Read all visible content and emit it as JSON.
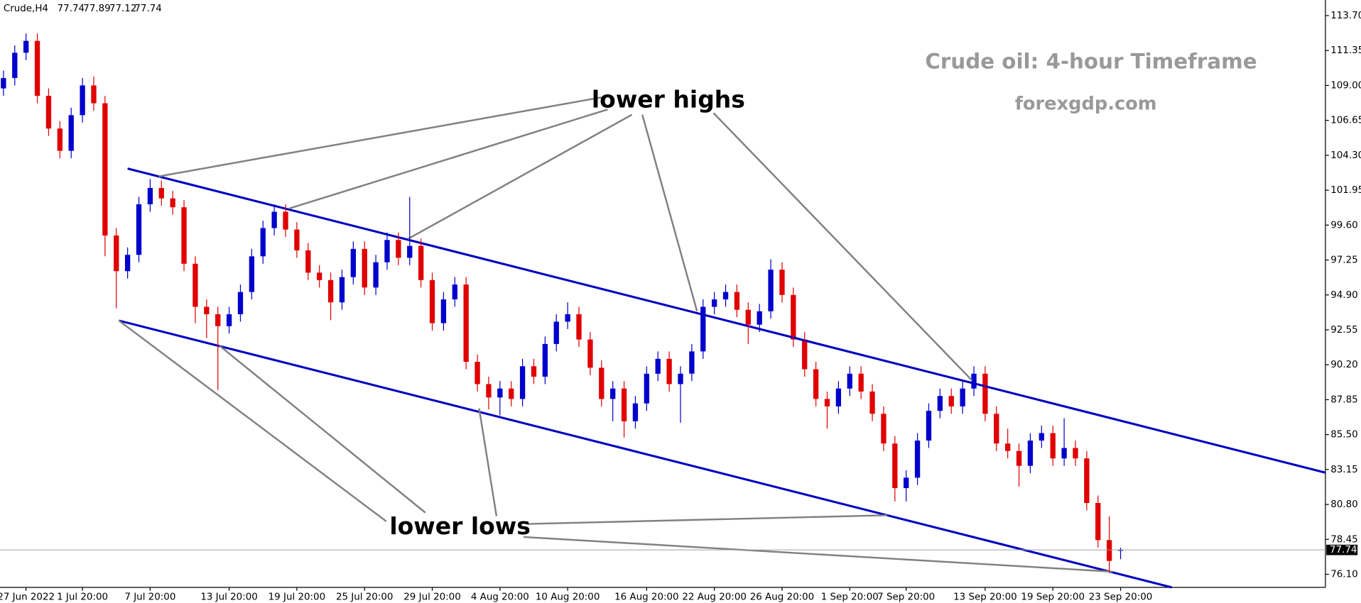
{
  "chart_data": {
    "type": "candlestick",
    "symbol": "Crude,H4",
    "title": "Crude oil: 4-hour Timeframe",
    "subtitle": "forexgdp.com",
    "annotations": [
      "lower highs",
      "lower lows"
    ],
    "up_color": "#0000cc",
    "down_color": "#e00000",
    "categories": [
      null,
      null,
      "27 Jun 2022",
      null,
      null,
      null,
      null,
      "1 Jul 20:00",
      null,
      null,
      null,
      null,
      null,
      "7 Jul 20:00",
      null,
      null,
      null,
      null,
      null,
      null,
      "13 Jul 20:00",
      null,
      null,
      null,
      null,
      null,
      "19 Jul 20:00",
      null,
      null,
      null,
      null,
      null,
      "25 Jul 20:00",
      null,
      null,
      null,
      null,
      null,
      "29 Jul 20:00",
      null,
      null,
      null,
      null,
      null,
      "4 Aug 20:00",
      null,
      null,
      null,
      null,
      null,
      "10 Aug 20:00",
      null,
      null,
      null,
      null,
      null,
      null,
      "16 Aug 20:00",
      null,
      null,
      null,
      null,
      null,
      "22 Aug 20:00",
      null,
      null,
      null,
      null,
      null,
      "26 Aug 20:00",
      null,
      null,
      null,
      null,
      null,
      "1 Sep 20:00",
      null,
      null,
      null,
      null,
      "7 Sep 20:00",
      null,
      null,
      null,
      null,
      null,
      null,
      "13 Sep 20:00",
      null,
      null,
      null,
      null,
      null,
      "19 Sep 20:00",
      null,
      null,
      null,
      null,
      null,
      "23 Sep 20:00"
    ],
    "open": [
      108.8,
      109.5,
      111.2,
      112.0,
      108.3,
      106.1,
      104.6,
      107.0,
      109.0,
      107.8,
      98.9,
      96.5,
      97.6,
      101.0,
      102.1,
      101.4,
      100.8,
      97.0,
      94.1,
      93.6,
      92.8,
      93.6,
      95.1,
      97.5,
      99.4,
      100.5,
      99.3,
      97.9,
      96.4,
      95.9,
      94.4,
      96.1,
      98.0,
      95.4,
      97.1,
      98.6,
      97.4,
      98.2,
      95.9,
      93.0,
      94.6,
      95.6,
      90.4,
      88.9,
      88.0,
      88.6,
      87.9,
      90.1,
      89.4,
      91.6,
      93.1,
      93.6,
      91.9,
      90.0,
      87.9,
      88.6,
      86.4,
      87.6,
      89.6,
      90.6,
      88.9,
      89.6,
      91.1,
      94.1,
      94.6,
      95.1,
      93.9,
      92.9,
      93.8,
      96.6,
      94.9,
      91.9,
      89.9,
      87.9,
      87.4,
      88.6,
      89.6,
      88.4,
      86.9,
      84.9,
      81.9,
      82.6,
      85.1,
      87.1,
      88.1,
      87.4,
      88.6,
      89.6,
      86.9,
      84.9,
      84.4,
      83.4,
      85.1,
      85.6,
      83.9,
      84.6,
      83.9,
      80.9,
      78.4,
      77.74
    ],
    "high": [
      110.0,
      111.7,
      112.5,
      112.5,
      108.8,
      106.6,
      107.5,
      109.5,
      109.6,
      108.3,
      99.4,
      98.1,
      101.5,
      102.7,
      102.6,
      101.9,
      101.3,
      97.5,
      94.6,
      94.1,
      94.1,
      95.6,
      98.0,
      99.9,
      101.0,
      101.0,
      99.8,
      98.4,
      96.9,
      96.4,
      96.6,
      98.5,
      98.5,
      97.6,
      99.1,
      99.1,
      101.5,
      98.7,
      96.4,
      95.1,
      96.1,
      96.1,
      90.9,
      89.4,
      89.1,
      89.1,
      90.6,
      90.6,
      92.1,
      93.6,
      94.4,
      94.1,
      92.4,
      90.5,
      89.1,
      89.1,
      88.1,
      90.1,
      91.1,
      91.1,
      90.1,
      91.6,
      94.6,
      95.1,
      95.6,
      95.6,
      94.4,
      94.3,
      97.3,
      97.1,
      95.4,
      92.4,
      90.4,
      88.4,
      89.1,
      90.1,
      90.1,
      88.9,
      87.4,
      85.4,
      83.1,
      85.6,
      87.6,
      88.6,
      88.6,
      89.1,
      90.1,
      90.1,
      87.4,
      85.9,
      84.9,
      85.6,
      86.1,
      86.1,
      86.6,
      85.1,
      84.4,
      81.4,
      80.0,
      77.89
    ],
    "low": [
      108.3,
      109.0,
      110.7,
      107.8,
      105.6,
      104.1,
      104.1,
      106.5,
      107.3,
      97.5,
      94.0,
      96.0,
      97.1,
      100.5,
      100.9,
      100.3,
      96.5,
      93.0,
      92.0,
      88.5,
      92.3,
      93.1,
      94.6,
      97.0,
      98.9,
      98.8,
      97.4,
      95.9,
      95.4,
      93.2,
      93.9,
      95.6,
      94.9,
      94.9,
      96.6,
      96.9,
      96.9,
      95.4,
      92.5,
      92.5,
      94.1,
      89.9,
      88.4,
      87.2,
      86.8,
      87.4,
      87.4,
      88.9,
      88.9,
      91.1,
      92.6,
      91.4,
      89.5,
      87.4,
      86.4,
      85.3,
      85.9,
      87.1,
      89.1,
      88.4,
      86.3,
      89.1,
      90.6,
      93.6,
      94.1,
      93.4,
      91.6,
      92.4,
      93.3,
      94.4,
      91.4,
      89.4,
      87.4,
      85.9,
      86.9,
      88.1,
      87.9,
      86.4,
      84.4,
      81.0,
      81.0,
      82.1,
      84.6,
      86.6,
      86.9,
      86.9,
      88.1,
      86.4,
      84.4,
      83.9,
      82.0,
      82.9,
      84.6,
      83.4,
      83.4,
      83.4,
      80.4,
      77.9,
      76.2,
      77.12
    ],
    "close": [
      109.5,
      111.2,
      112.0,
      108.3,
      106.1,
      104.6,
      107.0,
      109.0,
      107.8,
      98.9,
      96.5,
      97.6,
      101.0,
      102.1,
      101.4,
      100.8,
      97.0,
      94.1,
      93.6,
      92.8,
      93.6,
      95.1,
      97.5,
      99.4,
      100.5,
      99.3,
      97.9,
      96.4,
      95.9,
      94.4,
      96.1,
      98.0,
      95.4,
      97.1,
      98.6,
      97.4,
      98.2,
      95.9,
      93.0,
      94.6,
      95.6,
      90.4,
      88.9,
      88.0,
      88.6,
      87.9,
      90.1,
      89.4,
      91.6,
      93.1,
      93.6,
      91.9,
      90.0,
      87.9,
      88.6,
      86.4,
      87.6,
      89.6,
      90.6,
      88.9,
      89.6,
      91.1,
      94.1,
      94.6,
      95.1,
      93.9,
      92.9,
      93.8,
      96.6,
      94.9,
      91.9,
      89.9,
      87.9,
      87.4,
      88.6,
      89.6,
      88.4,
      86.9,
      84.9,
      81.9,
      82.6,
      85.1,
      87.1,
      88.1,
      87.4,
      88.6,
      89.6,
      86.9,
      84.9,
      84.4,
      83.4,
      85.1,
      85.6,
      83.9,
      84.6,
      83.9,
      80.9,
      78.4,
      77.0,
      77.74
    ],
    "ylim": [
      75.22,
      114.75
    ],
    "yticks": [
      {
        "value": 113.7,
        "label": "113.70"
      },
      111.35,
      {
        "value": 109,
        "label": "109.00"
      },
      106.65,
      {
        "value": 104.3,
        "label": "104.30"
      },
      101.95,
      {
        "value": 99.6,
        "label": "99.60"
      },
      97.25,
      {
        "value": 94.9,
        "label": "94.90"
      },
      92.55,
      {
        "value": 90.2,
        "label": "90.20"
      },
      87.85,
      {
        "value": 85.5,
        "label": "85.50"
      },
      83.15,
      {
        "value": 80.8,
        "label": "80.80"
      },
      78.45,
      {
        "value": 76.1,
        "label": "76.10"
      }
    ]
  }
}
